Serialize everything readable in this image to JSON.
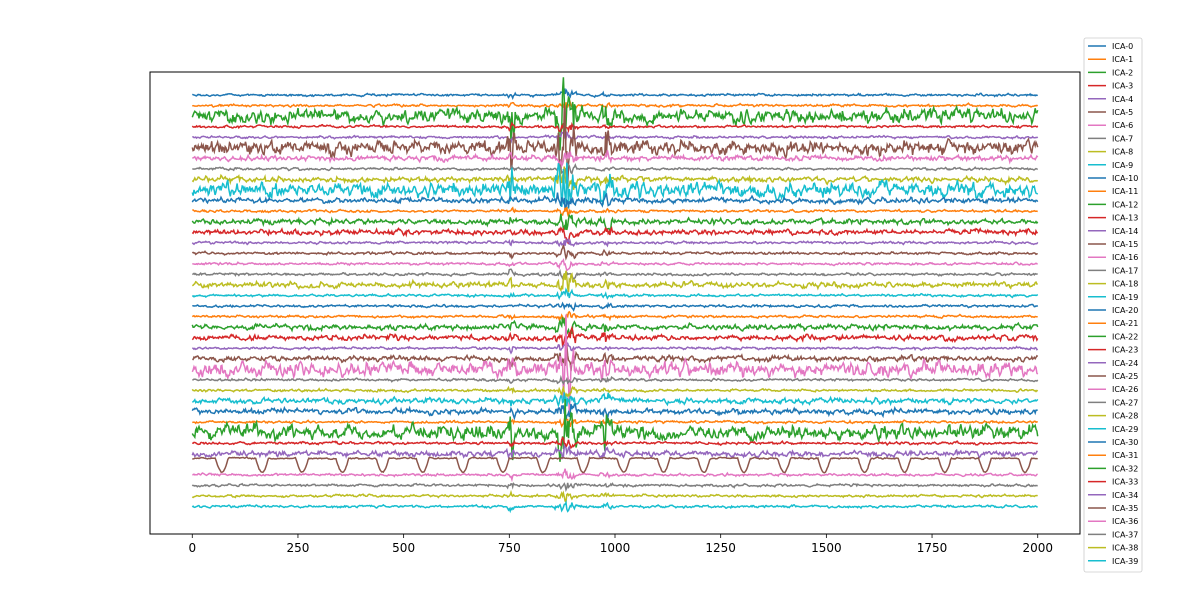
{
  "chart_data": {
    "type": "line",
    "title": "",
    "xlabel": "",
    "ylabel": "",
    "xlim": [
      -100,
      2100
    ],
    "xticks": [
      0,
      250,
      500,
      750,
      1000,
      1250,
      1500,
      1750,
      2000
    ],
    "xtick_labels": [
      "0",
      "250",
      "500",
      "750",
      "1000",
      "1250",
      "1500",
      "1750",
      "2000"
    ],
    "n_samples": 2001,
    "y_axis_visible": false,
    "grid": false,
    "legend_position": "outside right",
    "series": [
      {
        "name": "ICA-0",
        "color": "#1f77b4",
        "amplitude": "low"
      },
      {
        "name": "ICA-1",
        "color": "#ff7f0e",
        "amplitude": "low"
      },
      {
        "name": "ICA-2",
        "color": "#2ca02c",
        "amplitude": "high"
      },
      {
        "name": "ICA-3",
        "color": "#d62728",
        "amplitude": "low"
      },
      {
        "name": "ICA-4",
        "color": "#9467bd",
        "amplitude": "low"
      },
      {
        "name": "ICA-5",
        "color": "#8c564b",
        "amplitude": "high"
      },
      {
        "name": "ICA-6",
        "color": "#e377c2",
        "amplitude": "medium"
      },
      {
        "name": "ICA-7",
        "color": "#7f7f7f",
        "amplitude": "low"
      },
      {
        "name": "ICA-8",
        "color": "#bcbd22",
        "amplitude": "medium"
      },
      {
        "name": "ICA-9",
        "color": "#17becf",
        "amplitude": "high"
      },
      {
        "name": "ICA-10",
        "color": "#1f77b4",
        "amplitude": "medium"
      },
      {
        "name": "ICA-11",
        "color": "#ff7f0e",
        "amplitude": "low"
      },
      {
        "name": "ICA-12",
        "color": "#2ca02c",
        "amplitude": "medium"
      },
      {
        "name": "ICA-13",
        "color": "#d62728",
        "amplitude": "medium"
      },
      {
        "name": "ICA-14",
        "color": "#9467bd",
        "amplitude": "low"
      },
      {
        "name": "ICA-15",
        "color": "#8c564b",
        "amplitude": "low"
      },
      {
        "name": "ICA-16",
        "color": "#e377c2",
        "amplitude": "low"
      },
      {
        "name": "ICA-17",
        "color": "#7f7f7f",
        "amplitude": "low"
      },
      {
        "name": "ICA-18",
        "color": "#bcbd22",
        "amplitude": "medium"
      },
      {
        "name": "ICA-19",
        "color": "#17becf",
        "amplitude": "low"
      },
      {
        "name": "ICA-20",
        "color": "#1f77b4",
        "amplitude": "low"
      },
      {
        "name": "ICA-21",
        "color": "#ff7f0e",
        "amplitude": "low"
      },
      {
        "name": "ICA-22",
        "color": "#2ca02c",
        "amplitude": "medium"
      },
      {
        "name": "ICA-23",
        "color": "#d62728",
        "amplitude": "medium"
      },
      {
        "name": "ICA-24",
        "color": "#9467bd",
        "amplitude": "low"
      },
      {
        "name": "ICA-25",
        "color": "#8c564b",
        "amplitude": "medium"
      },
      {
        "name": "ICA-26",
        "color": "#e377c2",
        "amplitude": "high"
      },
      {
        "name": "ICA-27",
        "color": "#7f7f7f",
        "amplitude": "low"
      },
      {
        "name": "ICA-28",
        "color": "#bcbd22",
        "amplitude": "low"
      },
      {
        "name": "ICA-29",
        "color": "#17becf",
        "amplitude": "medium"
      },
      {
        "name": "ICA-30",
        "color": "#1f77b4",
        "amplitude": "medium"
      },
      {
        "name": "ICA-31",
        "color": "#ff7f0e",
        "amplitude": "low"
      },
      {
        "name": "ICA-32",
        "color": "#2ca02c",
        "amplitude": "high"
      },
      {
        "name": "ICA-33",
        "color": "#d62728",
        "amplitude": "low"
      },
      {
        "name": "ICA-34",
        "color": "#9467bd",
        "amplitude": "medium"
      },
      {
        "name": "ICA-35",
        "color": "#8c564b",
        "amplitude": "blink"
      },
      {
        "name": "ICA-36",
        "color": "#e377c2",
        "amplitude": "low"
      },
      {
        "name": "ICA-37",
        "color": "#7f7f7f",
        "amplitude": "low"
      },
      {
        "name": "ICA-38",
        "color": "#bcbd22",
        "amplitude": "low"
      },
      {
        "name": "ICA-39",
        "color": "#17becf",
        "amplitude": "low"
      }
    ]
  }
}
